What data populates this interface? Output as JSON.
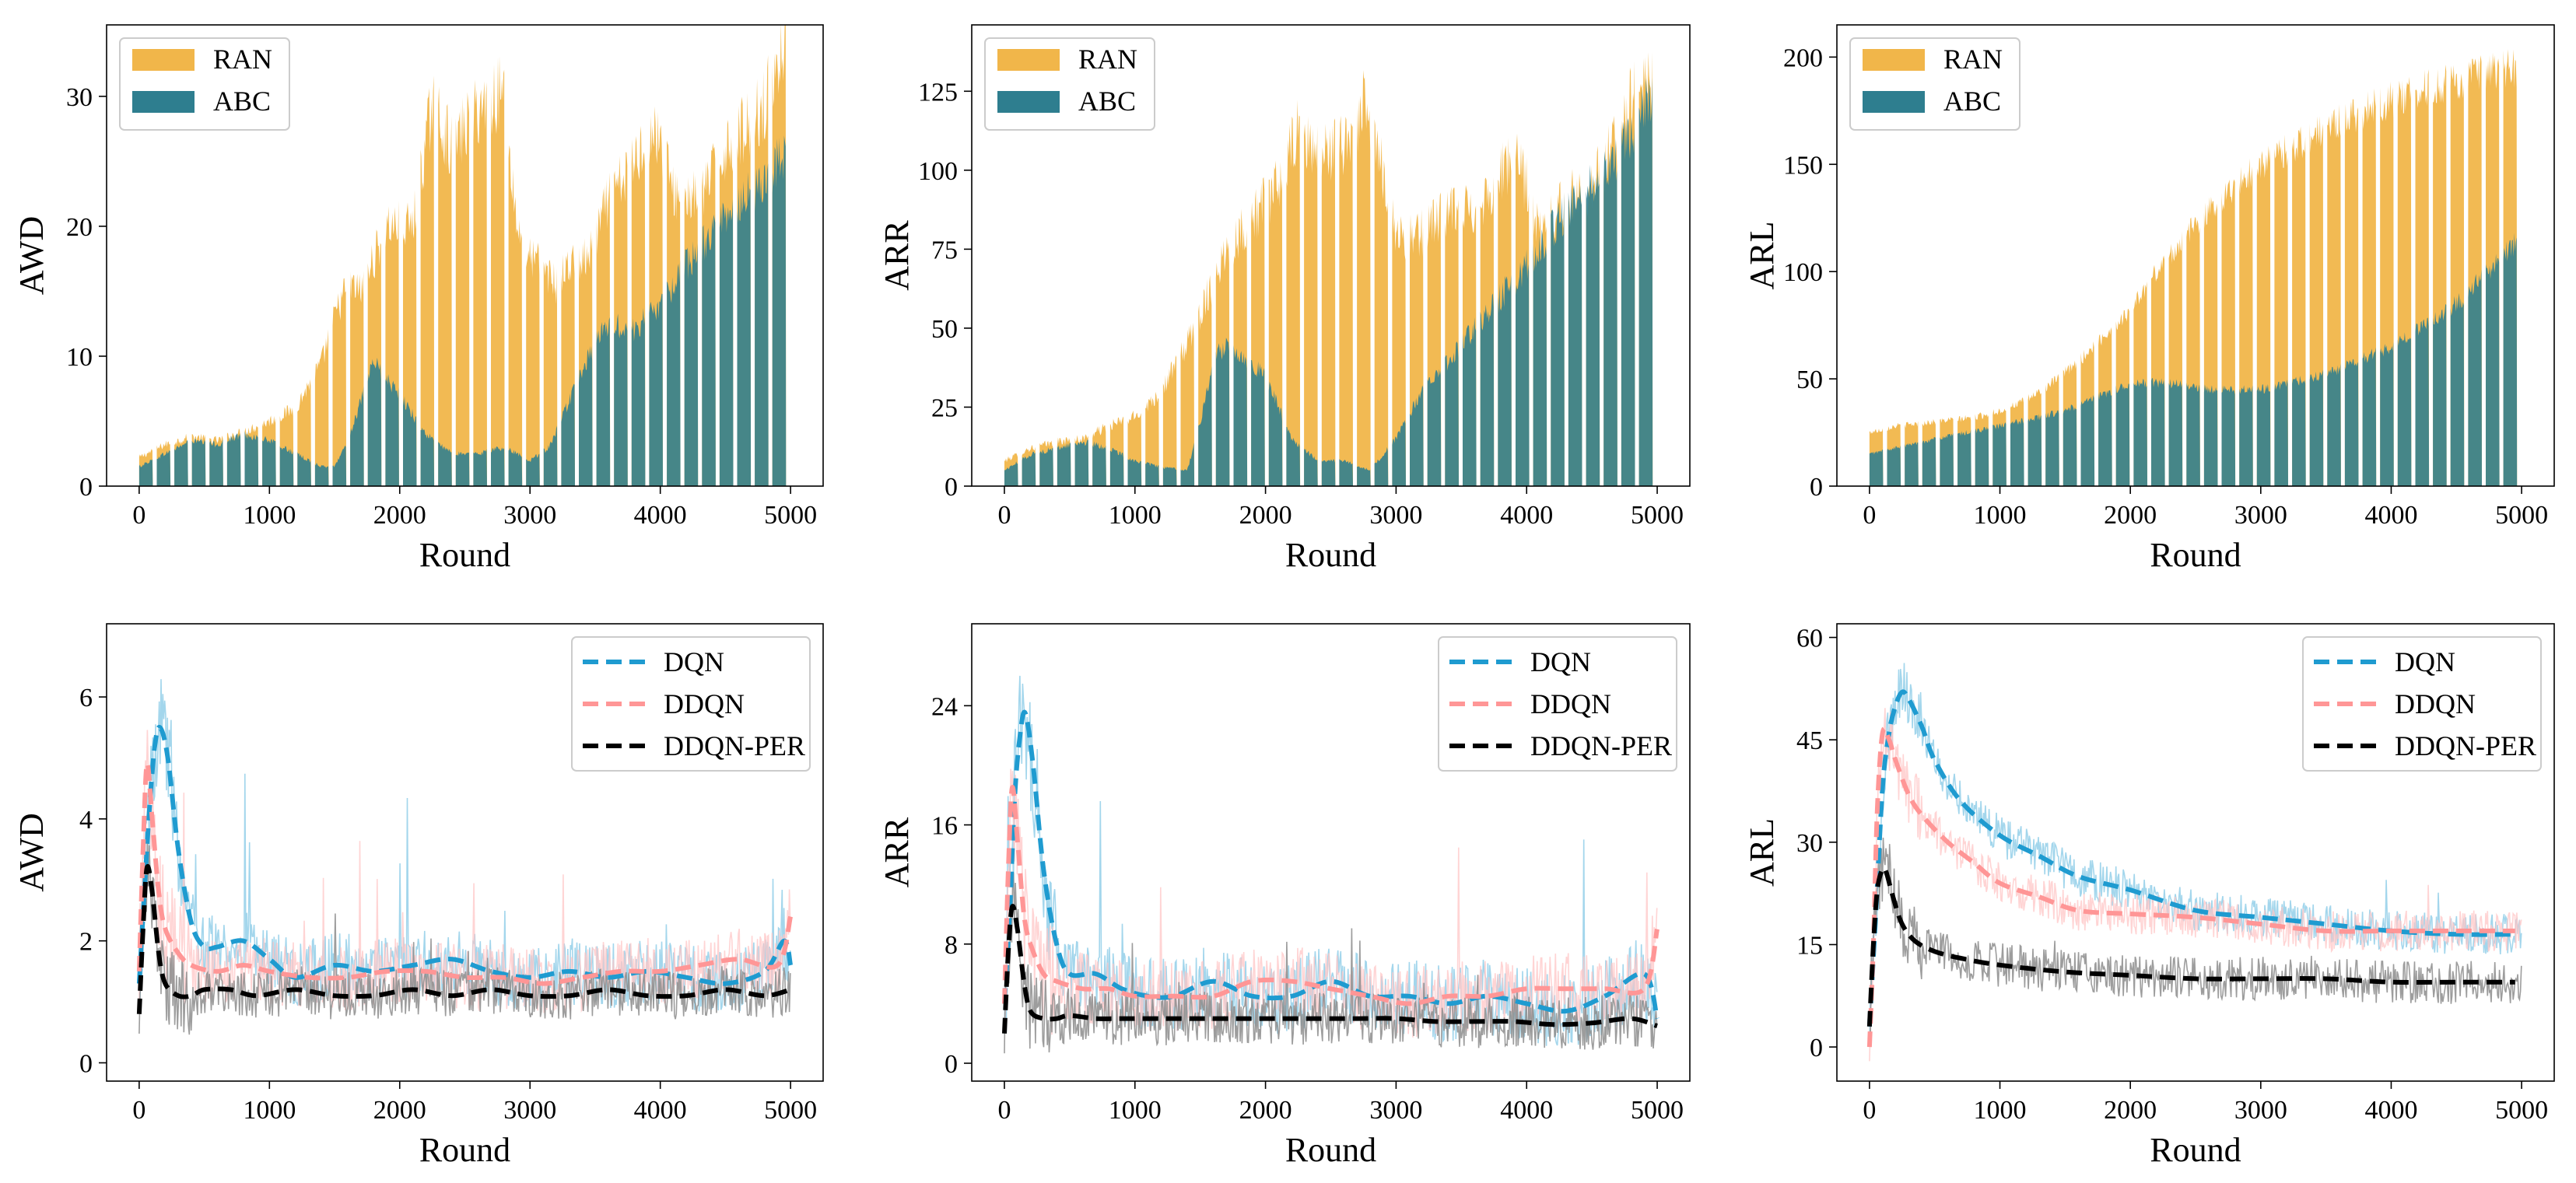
{
  "figure": {
    "background": "#ffffff"
  },
  "chart_data": [
    {
      "id": "top-awd",
      "type": "bar",
      "xlabel": "Round",
      "ylabel": "AWD",
      "xlim": [
        -250,
        5250
      ],
      "ylim": [
        0,
        35.5
      ],
      "xticks": [
        0,
        1000,
        2000,
        3000,
        4000,
        5000
      ],
      "yticks": [
        0,
        10,
        20,
        30
      ],
      "n_groups": 37,
      "group_period": 135,
      "group_width": 105,
      "legend": {
        "position": "upper left",
        "entries": [
          "RAN",
          "ABC"
        ]
      },
      "series": [
        {
          "name": "RAN",
          "color": "#f1b64a",
          "noise": 0.1,
          "curve_x": [
            0,
            200,
            400,
            600,
            800,
            1000,
            1200,
            1400,
            1500,
            1600,
            1700,
            1900,
            2100,
            2250,
            2400,
            2600,
            2800,
            2900,
            3000,
            3100,
            3200,
            3300,
            3450,
            3600,
            3750,
            3900,
            4000,
            4100,
            4300,
            4500,
            4700,
            4800,
            4950
          ],
          "curve_y": [
            2.2,
            3.2,
            3.8,
            3.5,
            4.2,
            5,
            6,
            9.5,
            13,
            15.5,
            15,
            20,
            20,
            29.5,
            26,
            29,
            30.5,
            20,
            17.5,
            17,
            15.5,
            17,
            17.5,
            22,
            24,
            27,
            27,
            22.5,
            22,
            26,
            28,
            29.5,
            34
          ]
        },
        {
          "name": "ABC",
          "color": "#2e7e8f",
          "noise": 0.08,
          "curve_x": [
            0,
            200,
            400,
            600,
            800,
            1000,
            1200,
            1400,
            1500,
            1600,
            1800,
            2000,
            2200,
            2400,
            2600,
            2800,
            3000,
            3150,
            3300,
            3450,
            3600,
            3800,
            4000,
            4200,
            4400,
            4600,
            4800,
            4950
          ],
          "curve_y": [
            1.5,
            2.5,
            3.5,
            3.2,
            4,
            3.5,
            2.5,
            1.5,
            1.5,
            3.5,
            9.5,
            7,
            4,
            2.5,
            2.5,
            3,
            2,
            3,
            6.5,
            10,
            12.5,
            12,
            14,
            17,
            19.5,
            22,
            23.5,
            25.5
          ]
        }
      ]
    },
    {
      "id": "top-arr",
      "type": "bar",
      "xlabel": "Round",
      "ylabel": "ARR",
      "xlim": [
        -250,
        5250
      ],
      "ylim": [
        0,
        146
      ],
      "xticks": [
        0,
        1000,
        2000,
        3000,
        4000,
        5000
      ],
      "yticks": [
        0,
        25,
        50,
        75,
        100,
        125
      ],
      "n_groups": 37,
      "group_period": 135,
      "group_width": 105,
      "legend": {
        "position": "upper left",
        "entries": [
          "RAN",
          "ABC"
        ]
      },
      "series": [
        {
          "name": "RAN",
          "color": "#f1b64a",
          "noise": 0.1,
          "curve_x": [
            0,
            200,
            400,
            600,
            800,
            1000,
            1200,
            1400,
            1500,
            1600,
            1700,
            1900,
            2100,
            2250,
            2400,
            2600,
            2750,
            2900,
            3000,
            3150,
            3300,
            3450,
            3600,
            3750,
            3900,
            4000,
            4100,
            4300,
            4500,
            4700,
            4850,
            4950
          ],
          "curve_y": [
            8,
            12,
            14,
            15,
            19,
            22,
            30,
            45,
            55,
            65,
            75,
            85,
            95,
            112,
            105,
            108,
            120,
            100,
            80,
            78,
            85,
            87,
            88,
            95,
            105,
            95,
            80,
            90,
            95,
            110,
            130,
            125
          ]
        },
        {
          "name": "ABC",
          "color": "#2e7e8f",
          "noise": 0.08,
          "curve_x": [
            0,
            200,
            400,
            600,
            800,
            1000,
            1200,
            1400,
            1500,
            1600,
            1700,
            1800,
            2000,
            2200,
            2400,
            2600,
            2800,
            3000,
            3200,
            3400,
            3600,
            3800,
            4000,
            4200,
            4400,
            4600,
            4800,
            4950
          ],
          "curve_y": [
            5,
            10,
            12,
            14,
            12,
            8,
            6,
            5,
            20,
            40,
            45,
            42,
            35,
            15,
            8,
            8,
            5,
            15,
            30,
            40,
            50,
            60,
            70,
            82,
            92,
            100,
            110,
            125
          ]
        }
      ]
    },
    {
      "id": "top-arl",
      "type": "bar",
      "xlabel": "Round",
      "ylabel": "ARL",
      "xlim": [
        -250,
        5250
      ],
      "ylim": [
        0,
        215
      ],
      "xticks": [
        0,
        1000,
        2000,
        3000,
        4000,
        5000
      ],
      "yticks": [
        0,
        50,
        100,
        150,
        200
      ],
      "n_groups": 37,
      "group_period": 135,
      "group_width": 105,
      "legend": {
        "position": "upper left",
        "entries": [
          "RAN",
          "ABC"
        ]
      },
      "series": [
        {
          "name": "RAN",
          "color": "#f1b64a",
          "noise": 0.05,
          "curve_x": [
            0,
            200,
            500,
            800,
            1000,
            1200,
            1400,
            1600,
            1800,
            2000,
            2200,
            2500,
            2800,
            3000,
            3300,
            3600,
            3900,
            4200,
            4500,
            4800,
            4950
          ],
          "curve_y": [
            25,
            28,
            30,
            32,
            35,
            40,
            48,
            58,
            70,
            82,
            100,
            122,
            140,
            150,
            160,
            170,
            178,
            184,
            189,
            193,
            195
          ]
        },
        {
          "name": "ABC",
          "color": "#2e7e8f",
          "noise": 0.05,
          "curve_x": [
            0,
            500,
            1000,
            1500,
            2000,
            2300,
            2600,
            3000,
            3500,
            4000,
            4500,
            4950
          ],
          "curve_y": [
            15,
            22,
            28,
            35,
            48,
            48,
            45,
            45,
            52,
            65,
            85,
            113
          ]
        }
      ]
    },
    {
      "id": "bot-awd",
      "type": "line",
      "xlabel": "Round",
      "ylabel": "AWD",
      "xlim": [
        -250,
        5250
      ],
      "ylim": [
        -0.3,
        7.2
      ],
      "xticks": [
        0,
        1000,
        2000,
        3000,
        4000,
        5000
      ],
      "yticks": [
        0,
        2,
        4,
        6
      ],
      "legend": {
        "position": "upper right",
        "entries": [
          "DQN",
          "DDQN",
          "DDQN-PER"
        ]
      },
      "series": [
        {
          "name": "DQN",
          "color": "#1f9bd0",
          "noise": 0.55,
          "spike": 2.5,
          "x": [
            0,
            40,
            80,
            120,
            160,
            220,
            300,
            400,
            500,
            600,
            800,
            1000,
            1200,
            1500,
            1800,
            2100,
            2400,
            2700,
            3000,
            3300,
            3600,
            3900,
            4200,
            4500,
            4800,
            4950,
            5000
          ],
          "y": [
            1.3,
            2.8,
            4.2,
            5.2,
            5.5,
            5.0,
            3.5,
            2.3,
            1.9,
            1.9,
            2.0,
            1.7,
            1.4,
            1.6,
            1.5,
            1.6,
            1.7,
            1.5,
            1.4,
            1.5,
            1.4,
            1.5,
            1.4,
            1.3,
            1.5,
            2.0,
            1.6
          ]
        },
        {
          "name": "DDQN",
          "color": "#ff9696",
          "noise": 0.55,
          "spike": 2.5,
          "x": [
            0,
            30,
            60,
            100,
            150,
            200,
            300,
            400,
            600,
            800,
            1000,
            1300,
            1600,
            1900,
            2200,
            2500,
            2800,
            3100,
            3400,
            3700,
            4000,
            4300,
            4600,
            4900,
            5000
          ],
          "y": [
            1.5,
            3.5,
            4.9,
            4.0,
            2.8,
            2.2,
            1.8,
            1.6,
            1.5,
            1.6,
            1.5,
            1.4,
            1.4,
            1.5,
            1.5,
            1.4,
            1.4,
            1.3,
            1.4,
            1.5,
            1.5,
            1.6,
            1.7,
            1.6,
            2.4
          ]
        },
        {
          "name": "DDQN-PER",
          "color": "#000000",
          "noise": 0.4,
          "spike": 1.2,
          "x": [
            0,
            30,
            60,
            100,
            150,
            200,
            300,
            400,
            500,
            700,
            900,
            1200,
            1500,
            1800,
            2100,
            2400,
            2700,
            3000,
            3300,
            3600,
            3900,
            4200,
            4500,
            4800,
            5000
          ],
          "y": [
            0.8,
            2.2,
            3.2,
            2.8,
            1.8,
            1.3,
            1.1,
            1.1,
            1.2,
            1.2,
            1.1,
            1.2,
            1.1,
            1.1,
            1.2,
            1.1,
            1.2,
            1.1,
            1.1,
            1.2,
            1.1,
            1.1,
            1.2,
            1.1,
            1.2
          ]
        }
      ]
    },
    {
      "id": "bot-arr",
      "type": "line",
      "xlabel": "Round",
      "ylabel": "ARR",
      "xlim": [
        -250,
        5250
      ],
      "ylim": [
        -1.2,
        29.5
      ],
      "xticks": [
        0,
        1000,
        2000,
        3000,
        4000,
        5000
      ],
      "yticks": [
        0,
        8,
        16,
        24
      ],
      "legend": {
        "position": "upper right",
        "entries": [
          "DQN",
          "DDQN",
          "DDQN-PER"
        ]
      },
      "series": [
        {
          "name": "DQN",
          "color": "#1f9bd0",
          "noise": 2.6,
          "spike": 10,
          "x": [
            0,
            40,
            80,
            120,
            160,
            220,
            300,
            400,
            500,
            700,
            900,
            1100,
            1300,
            1600,
            1900,
            2200,
            2500,
            2800,
            3100,
            3400,
            3700,
            4000,
            4300,
            4600,
            4900,
            5000
          ],
          "y": [
            4,
            10,
            18,
            22,
            23.5,
            20,
            13,
            8,
            6,
            6,
            5,
            4.5,
            4.5,
            5.5,
            4.5,
            4.5,
            5.5,
            4.5,
            4.5,
            4,
            4.5,
            4,
            3.5,
            4.5,
            6,
            3
          ]
        },
        {
          "name": "DDQN",
          "color": "#ff9696",
          "noise": 2.4,
          "spike": 10,
          "x": [
            0,
            30,
            60,
            100,
            150,
            200,
            300,
            400,
            600,
            800,
            1000,
            1300,
            1600,
            1900,
            2200,
            2500,
            2800,
            3100,
            3400,
            3700,
            4000,
            4300,
            4600,
            4900,
            5000
          ],
          "y": [
            4,
            13,
            18.5,
            15,
            10,
            8,
            6,
            5.5,
            5,
            5,
            4.5,
            4.5,
            4.5,
            5.5,
            5.5,
            5,
            4.5,
            4,
            4.5,
            4.5,
            5,
            5,
            5,
            5,
            9
          ]
        },
        {
          "name": "DDQN-PER",
          "color": "#000000",
          "noise": 1.8,
          "spike": 6,
          "x": [
            0,
            30,
            60,
            100,
            150,
            200,
            300,
            400,
            500,
            700,
            900,
            1200,
            1500,
            1800,
            2100,
            2400,
            2700,
            3000,
            3300,
            3600,
            3900,
            4200,
            4500,
            4800,
            5000
          ],
          "y": [
            2,
            7.5,
            10.5,
            9,
            5.5,
            3.5,
            3,
            3,
            3.2,
            3,
            3,
            3,
            3,
            3,
            3,
            3,
            3,
            3,
            2.8,
            2.8,
            2.8,
            2.6,
            2.7,
            3,
            2.5
          ]
        }
      ]
    },
    {
      "id": "bot-arl",
      "type": "line",
      "xlabel": "Round",
      "ylabel": "ARL",
      "xlim": [
        -250,
        5250
      ],
      "ylim": [
        -5,
        62
      ],
      "xticks": [
        0,
        1000,
        2000,
        3000,
        4000,
        5000
      ],
      "yticks": [
        0,
        15,
        30,
        45,
        60
      ],
      "legend": {
        "position": "upper right",
        "entries": [
          "DQN",
          "DDQN",
          "DDQN-PER"
        ]
      },
      "series": [
        {
          "name": "DQN",
          "color": "#1f9bd0",
          "noise": 3.0,
          "spike": 6,
          "x": [
            0,
            50,
            100,
            150,
            200,
            250,
            300,
            400,
            500,
            700,
            1000,
            1300,
            1600,
            2000,
            2500,
            3000,
            3500,
            4000,
            4500,
            4950
          ],
          "y": [
            3,
            20,
            38,
            46,
            50,
            52,
            51,
            47,
            42,
            36,
            31,
            28,
            25,
            23,
            20,
            19,
            18,
            17,
            16.5,
            16.5
          ]
        },
        {
          "name": "DDQN",
          "color": "#ff9696",
          "noise": 3.0,
          "spike": 6,
          "x": [
            0,
            30,
            60,
            100,
            150,
            200,
            300,
            400,
            600,
            800,
            1000,
            1300,
            1600,
            2000,
            2500,
            3000,
            3500,
            4000,
            4500,
            4950
          ],
          "y": [
            0,
            15,
            35,
            46,
            45,
            42,
            37,
            34,
            30,
            27,
            24,
            22,
            20,
            19.5,
            19,
            18,
            17,
            17,
            17,
            17
          ]
        },
        {
          "name": "DDQN-PER",
          "color": "#000000",
          "noise": 3.2,
          "spike": 5,
          "x": [
            0,
            30,
            60,
            100,
            130,
            180,
            250,
            350,
            500,
            700,
            1000,
            1500,
            2000,
            2500,
            3000,
            3500,
            4000,
            4500,
            4950
          ],
          "y": [
            3,
            15,
            23,
            26,
            25.5,
            22,
            18,
            15.5,
            14,
            13,
            12,
            11,
            10.5,
            10,
            10,
            10,
            9.5,
            9.5,
            9.5
          ]
        }
      ]
    }
  ]
}
